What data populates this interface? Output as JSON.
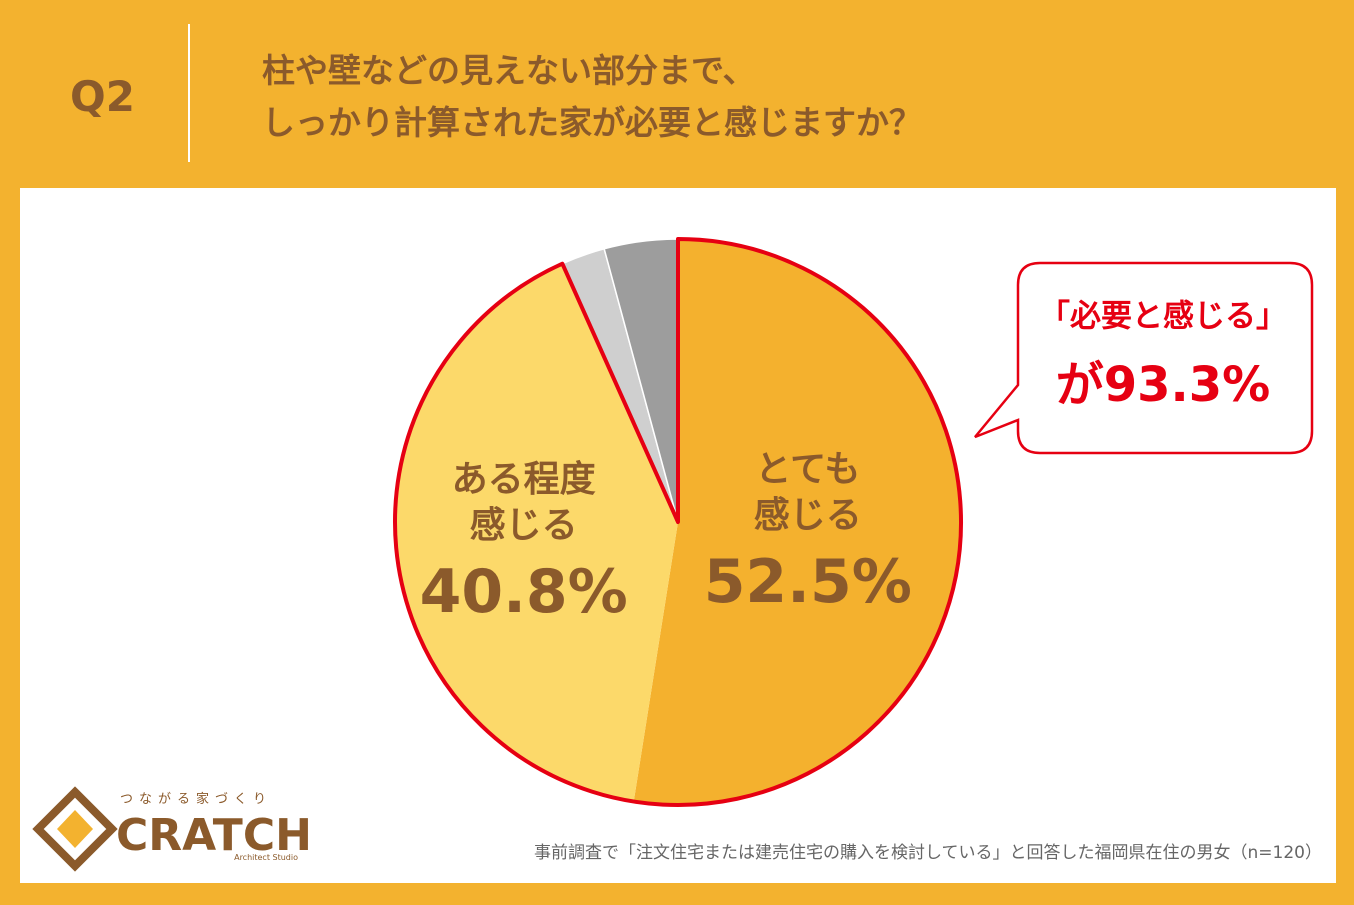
{
  "header": {
    "number": "Q2",
    "question": [
      "柱や壁などの見えない部分まで、",
      "しっかり計算された家が必要と感じますか？"
    ]
  },
  "chart_data": {
    "type": "pie",
    "categories": [
      "とても\n感じる",
      "ある程度\n感じる",
      null,
      null
    ],
    "values": [
      52.5,
      40.8,
      2.5,
      4.2
    ],
    "value_labels": [
      "52.5%",
      "40.8%",
      null,
      null
    ],
    "colors": [
      "#F4B12E",
      "#FCD96A",
      "#CFCFCF",
      "#9D9D9D"
    ],
    "highlight_color": "#E60012"
  },
  "callout": {
    "line1": "「必要と感じる」",
    "line2": "が93.3%"
  },
  "footnote": "事前調査で「注文住宅または建売住宅の購入を検討している」と回答した福岡県在住の男女（n=120）",
  "logo": {
    "tagline": "つながる家づくり",
    "name": "CRATCH",
    "sub": "Architect Studio"
  }
}
